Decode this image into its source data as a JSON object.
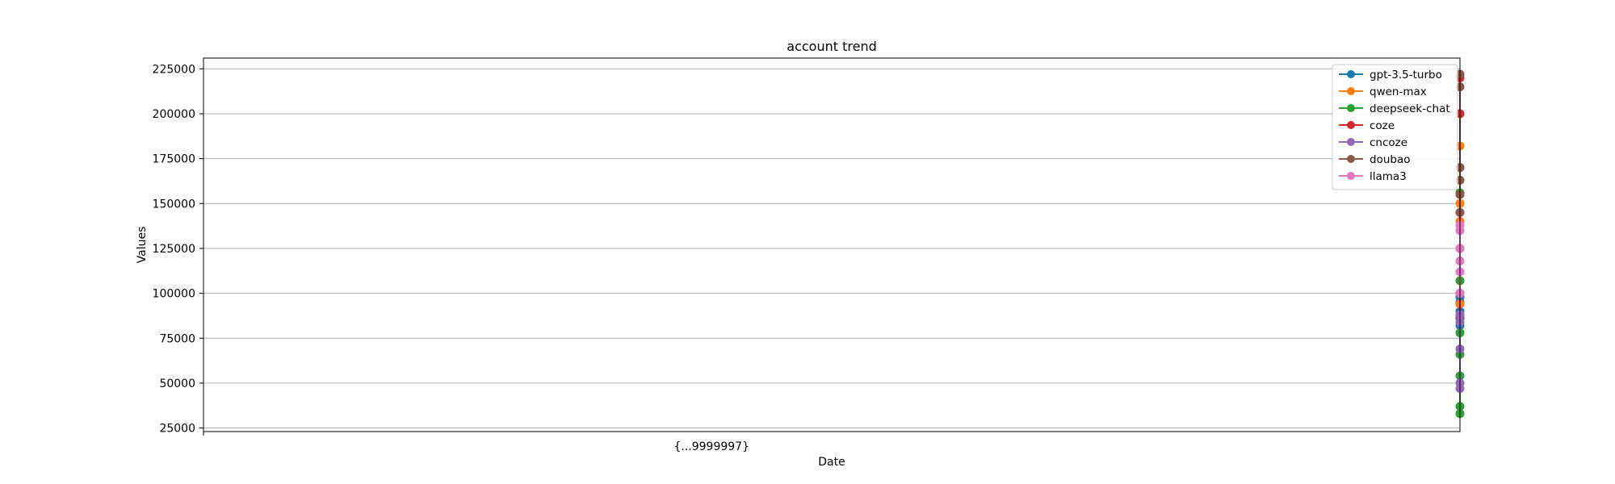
{
  "chart_data": {
    "type": "line",
    "title": "account trend",
    "xlabel": "Date",
    "ylabel": "Values",
    "ylim": [
      23000,
      231000
    ],
    "yticks": [
      25000,
      50000,
      75000,
      100000,
      125000,
      150000,
      175000,
      200000,
      225000
    ],
    "grid": "horizontal",
    "legend_position": "top-right",
    "x_tick_text": "{...9999997}",
    "series": [
      {
        "name": "gpt-3.5-turbo",
        "color": "#1f77b4",
        "values": [
          82000,
          86000,
          90000,
          95000,
          98000,
          100000
        ]
      },
      {
        "name": "qwen-max",
        "color": "#ff7f0e",
        "values": [
          88000,
          94000,
          100000,
          140000,
          150000,
          182000
        ]
      },
      {
        "name": "deepseek-chat",
        "color": "#2ca02c",
        "values": [
          33000,
          37000,
          54000,
          66000,
          78000,
          107000,
          156000
        ]
      },
      {
        "name": "coze",
        "color": "#d62728",
        "values": [
          87000,
          100000,
          125000,
          170000,
          200000,
          220000
        ]
      },
      {
        "name": "cncoze",
        "color": "#9467bd",
        "values": [
          47000,
          50000,
          69000,
          84000,
          88000
        ]
      },
      {
        "name": "doubao",
        "color": "#8c564b",
        "values": [
          145000,
          155000,
          163000,
          170000,
          215000,
          222000
        ]
      },
      {
        "name": "llama3",
        "color": "#e377c2",
        "values": [
          100000,
          112000,
          118000,
          125000,
          135000,
          138000
        ]
      }
    ]
  }
}
